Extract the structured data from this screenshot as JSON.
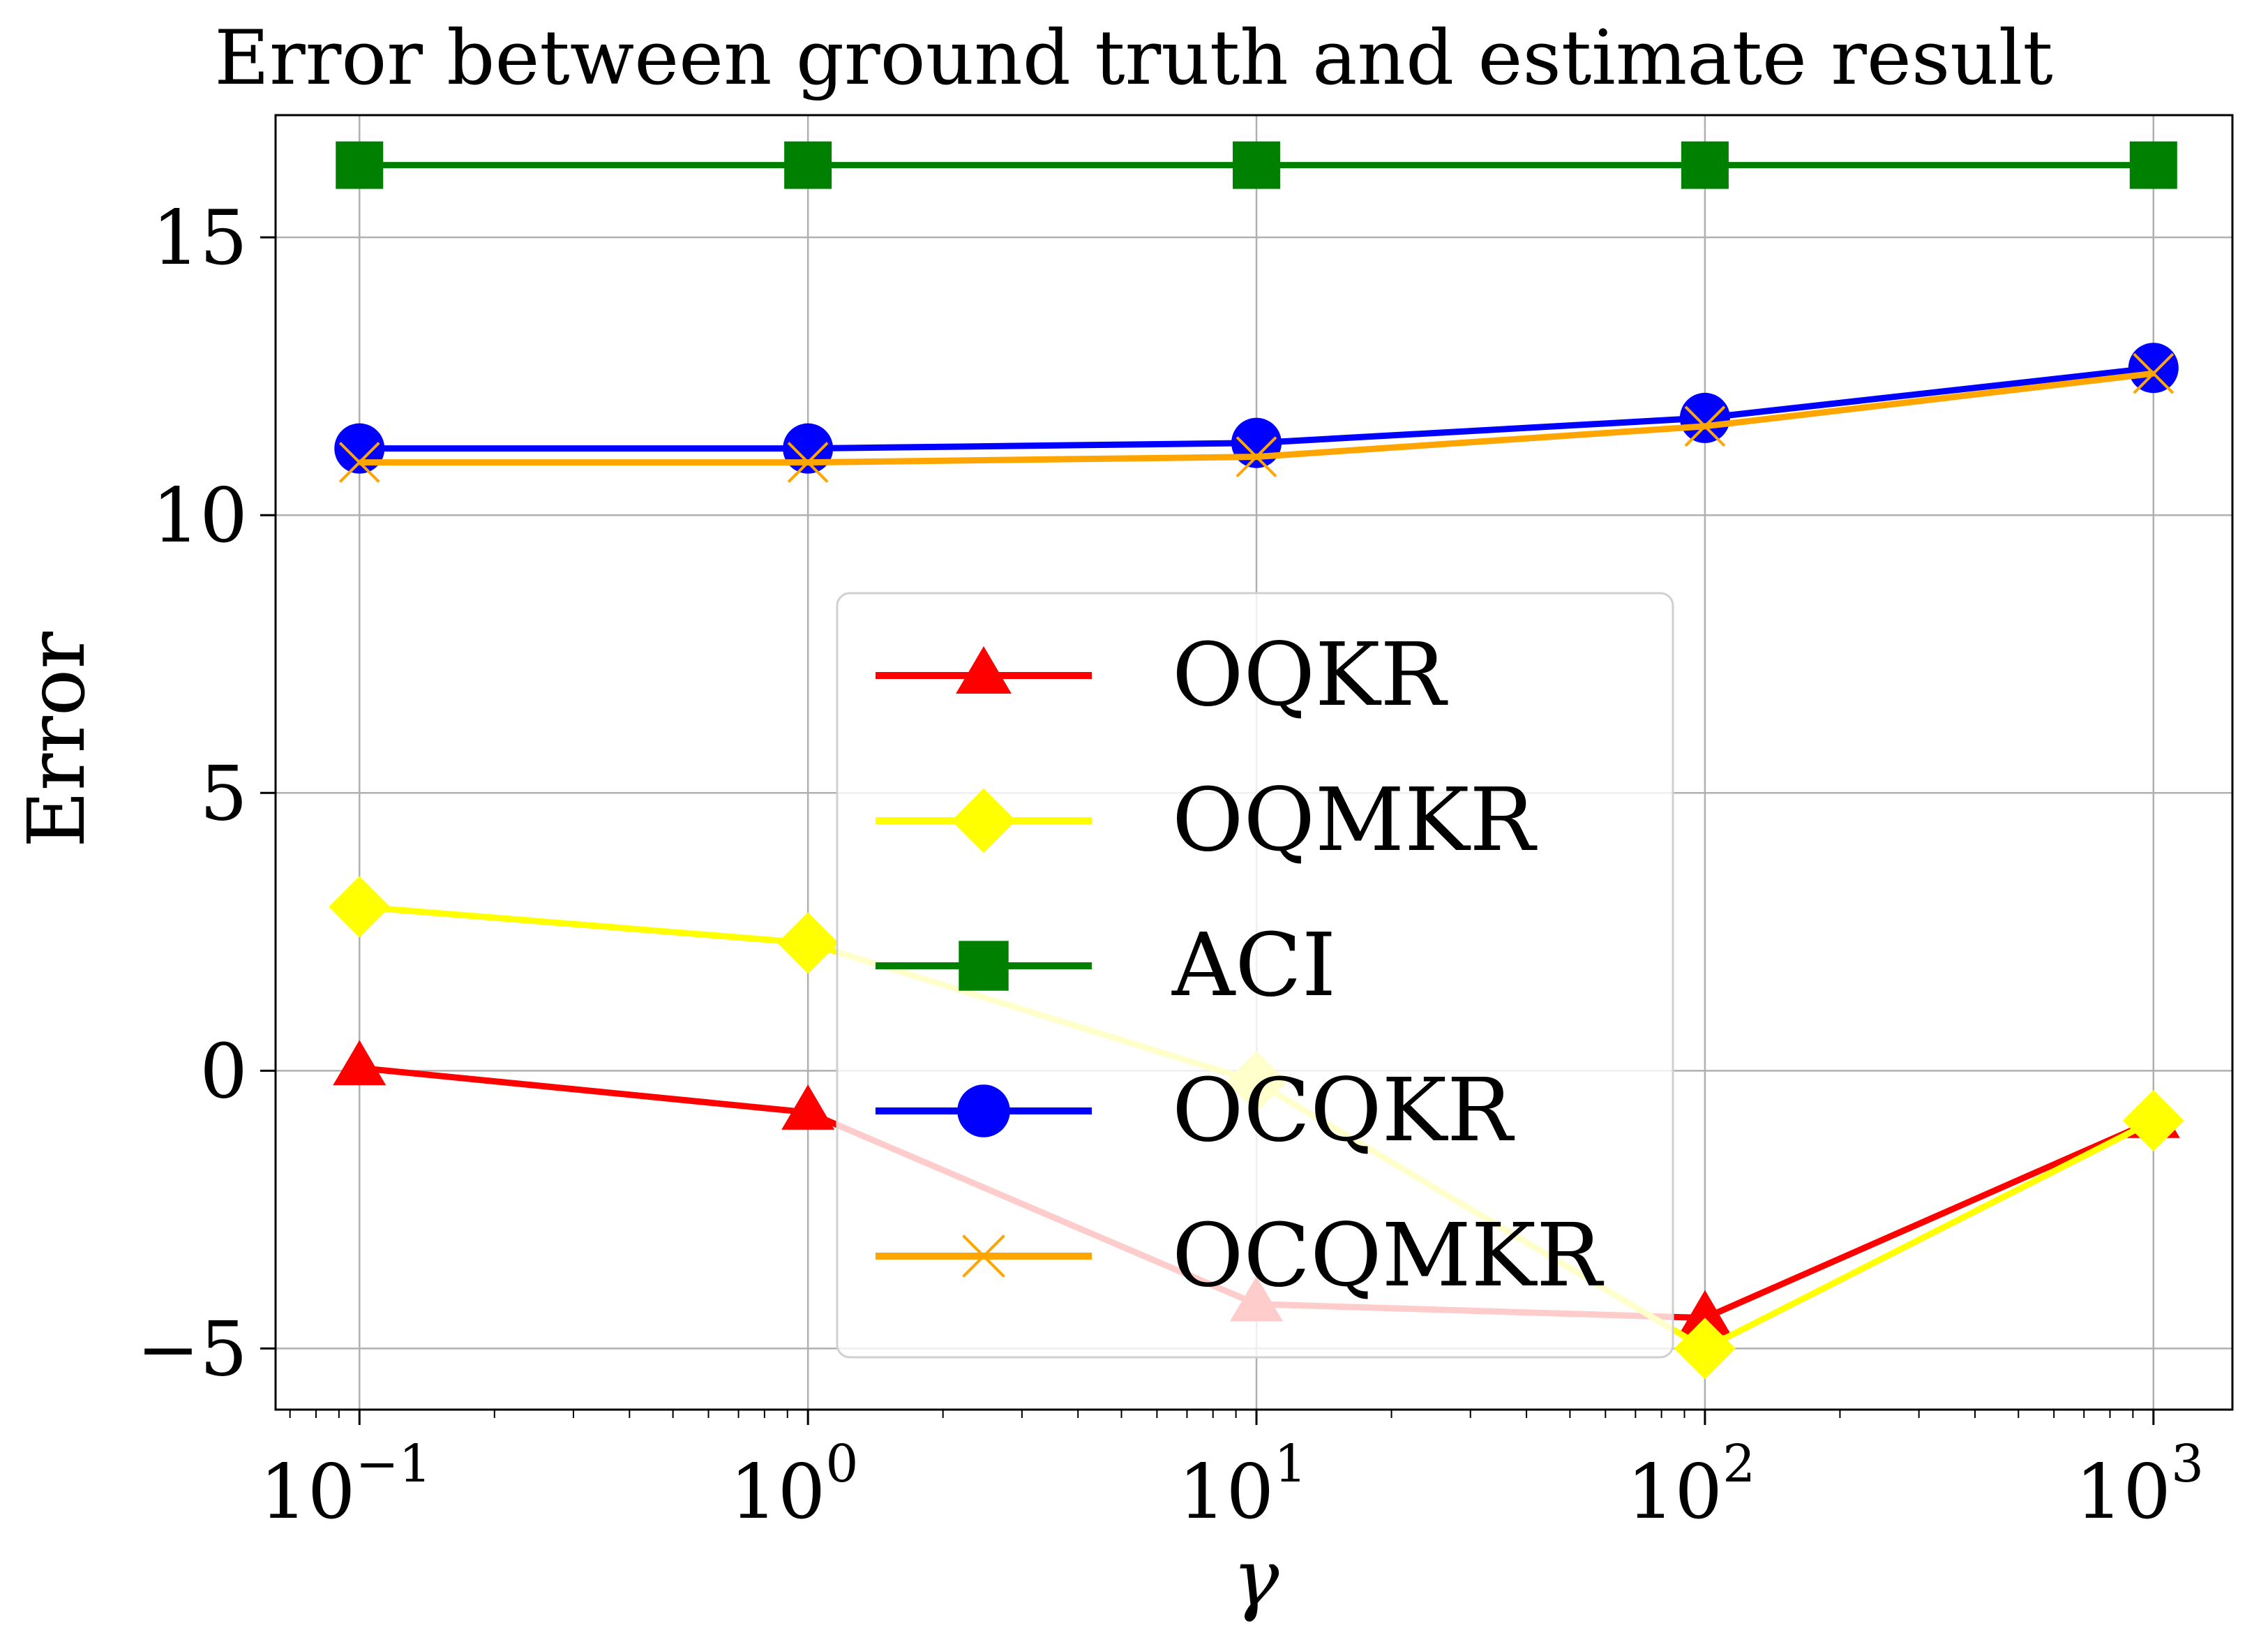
{
  "chart_data": {
    "type": "line",
    "title": "Error between ground truth and estimate result",
    "xlabel": "γ",
    "ylabel": "Error",
    "xscale": "log",
    "x": [
      0.1,
      1,
      10,
      100,
      1000
    ],
    "x_tick_labels": [
      {
        "base": "10",
        "exp": "−1"
      },
      {
        "base": "10",
        "exp": "0"
      },
      {
        "base": "10",
        "exp": "1"
      },
      {
        "base": "10",
        "exp": "2"
      },
      {
        "base": "10",
        "exp": "3"
      }
    ],
    "xlim": [
      0.065,
      1500
    ],
    "y_ticks": [
      -5,
      0,
      5,
      10,
      15
    ],
    "y_tick_labels": [
      "−5",
      "0",
      "5",
      "10",
      "15"
    ],
    "ylim": [
      -6.1,
      17.2
    ],
    "grid": true,
    "legend_position": "center",
    "series": [
      {
        "name": "OQKR",
        "color": "#ff0000",
        "marker": "triangle",
        "values": [
          0.05,
          -0.75,
          -4.2,
          -4.45,
          -0.9
        ]
      },
      {
        "name": "OQMKR",
        "color": "#ffff00",
        "marker": "diamond",
        "values": [
          2.95,
          2.3,
          -0.2,
          -5.0,
          -0.9
        ]
      },
      {
        "name": "ACI",
        "color": "#008000",
        "marker": "square",
        "values": [
          16.3,
          16.3,
          16.3,
          16.3,
          16.3
        ]
      },
      {
        "name": "OCQKR",
        "color": "#0000ff",
        "marker": "circle",
        "values": [
          11.2,
          11.2,
          11.3,
          11.75,
          12.65
        ]
      },
      {
        "name": "OCQMKR",
        "color": "#ffa500",
        "marker": "x",
        "values": [
          10.95,
          10.95,
          11.05,
          11.6,
          12.55
        ]
      }
    ]
  }
}
